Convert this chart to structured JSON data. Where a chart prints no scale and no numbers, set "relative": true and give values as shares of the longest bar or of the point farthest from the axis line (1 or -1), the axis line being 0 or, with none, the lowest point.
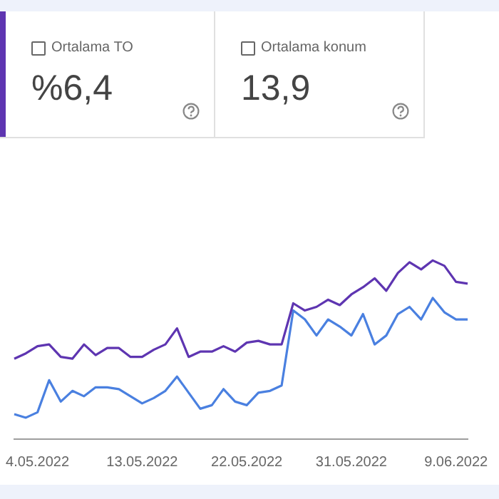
{
  "chart_data": {
    "type": "line",
    "relative": true,
    "legend": false,
    "marker": "none",
    "line_style": "solid",
    "annotations": [
      "Ortalama TO",
      "%6,4",
      "Ortalama konum",
      "13,9"
    ],
    "categories": [
      null,
      null,
      "4.05.2022",
      null,
      null,
      null,
      null,
      null,
      null,
      null,
      null,
      "13.05.2022",
      null,
      null,
      null,
      null,
      null,
      null,
      null,
      null,
      "22.05.2022",
      null,
      null,
      null,
      null,
      null,
      null,
      null,
      null,
      "31.05.2022",
      null,
      null,
      null,
      null,
      null,
      null,
      null,
      null,
      "9.06.2022",
      null
    ],
    "series": [
      {
        "color": "#5e35b1",
        "values": [
          0.45,
          0.48,
          0.52,
          0.53,
          0.46,
          0.45,
          0.53,
          0.47,
          0.51,
          0.51,
          0.46,
          0.46,
          0.5,
          0.53,
          0.62,
          0.46,
          0.49,
          0.49,
          0.52,
          0.49,
          0.54,
          0.55,
          0.53,
          0.53,
          0.76,
          0.72,
          0.74,
          0.78,
          0.75,
          0.81,
          0.85,
          0.9,
          0.83,
          0.93,
          0.99,
          0.95,
          1,
          0.97,
          0.88,
          0.87
        ]
      },
      {
        "color": "#4a80e0",
        "values": [
          0.14,
          0.12,
          0.15,
          0.33,
          0.21,
          0.27,
          0.24,
          0.29,
          0.29,
          0.28,
          0.24,
          0.2,
          0.23,
          0.27,
          0.35,
          0.26,
          0.17,
          0.19,
          0.28,
          0.21,
          0.19,
          0.26,
          0.27,
          0.3,
          0.72,
          0.67,
          0.58,
          0.67,
          0.63,
          0.58,
          0.7,
          0.53,
          0.58,
          0.7,
          0.74,
          0.67,
          0.79,
          0.71,
          0.67,
          0.67
        ]
      }
    ]
  }
}
